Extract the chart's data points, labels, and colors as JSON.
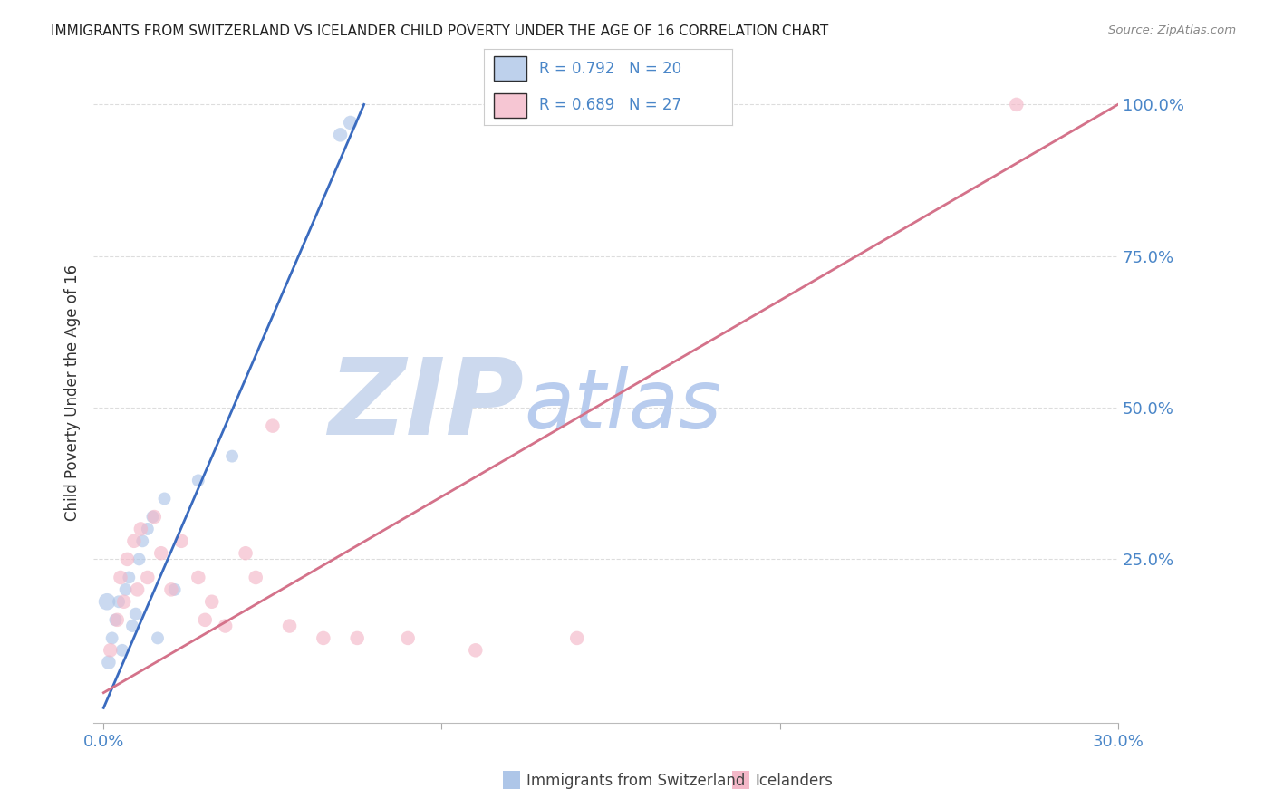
{
  "title": "IMMIGRANTS FROM SWITZERLAND VS ICELANDER CHILD POVERTY UNDER THE AGE OF 16 CORRELATION CHART",
  "source": "Source: ZipAtlas.com",
  "ylabel": "Child Poverty Under the Age of 16",
  "x_tick_labels": [
    "0.0%",
    "",
    "",
    "30.0%"
  ],
  "x_tick_values": [
    0.0,
    10.0,
    20.0,
    30.0
  ],
  "y_tick_labels": [
    "100.0%",
    "75.0%",
    "50.0%",
    "25.0%"
  ],
  "y_tick_values": [
    100.0,
    75.0,
    50.0,
    25.0
  ],
  "xlim": [
    -0.3,
    30.0
  ],
  "ylim": [
    -2.0,
    107.0
  ],
  "legend_r_blue": "R = 0.792",
  "legend_n_blue": "N = 20",
  "legend_r_pink": "R = 0.689",
  "legend_n_pink": "N = 27",
  "legend_label_blue": "Immigrants from Switzerland",
  "legend_label_pink": "Icelanders",
  "blue_color": "#aec6e8",
  "pink_color": "#f4b8c8",
  "blue_line_color": "#3a6bbf",
  "pink_line_color": "#d4728a",
  "title_color": "#222222",
  "tick_label_color": "#4a86c8",
  "watermark_zip_color": "#ccd9ee",
  "watermark_atlas_color": "#b8ccee",
  "background_color": "#ffffff",
  "grid_color": "#dddddd",
  "blue_scatter_x": [
    0.15,
    0.25,
    0.35,
    0.45,
    0.55,
    0.65,
    0.75,
    0.85,
    0.95,
    1.05,
    1.15,
    1.3,
    1.45,
    1.6,
    1.8,
    2.1,
    2.8,
    3.8,
    7.0,
    7.3
  ],
  "blue_scatter_y": [
    8.0,
    12.0,
    15.0,
    18.0,
    10.0,
    20.0,
    22.0,
    14.0,
    16.0,
    25.0,
    28.0,
    30.0,
    32.0,
    12.0,
    35.0,
    20.0,
    38.0,
    42.0,
    95.0,
    97.0
  ],
  "blue_scatter_size": [
    25,
    20,
    20,
    20,
    20,
    20,
    20,
    20,
    20,
    20,
    20,
    20,
    20,
    20,
    20,
    20,
    20,
    20,
    25,
    25
  ],
  "blue_large_x": [
    0.1
  ],
  "blue_large_y": [
    18.0
  ],
  "blue_large_size": [
    180
  ],
  "pink_scatter_x": [
    0.2,
    0.4,
    0.5,
    0.6,
    0.7,
    0.9,
    1.0,
    1.1,
    1.3,
    1.5,
    1.7,
    2.0,
    2.3,
    2.8,
    3.2,
    3.6,
    4.5,
    5.5,
    6.5,
    4.2,
    5.0,
    7.5,
    9.0,
    11.0,
    14.0,
    27.0,
    3.0
  ],
  "pink_scatter_y": [
    10.0,
    15.0,
    22.0,
    18.0,
    25.0,
    28.0,
    20.0,
    30.0,
    22.0,
    32.0,
    26.0,
    20.0,
    28.0,
    22.0,
    18.0,
    14.0,
    22.0,
    14.0,
    12.0,
    26.0,
    47.0,
    12.0,
    12.0,
    10.0,
    12.0,
    100.0,
    15.0
  ],
  "pink_scatter_size": [
    25,
    25,
    25,
    25,
    25,
    25,
    25,
    25,
    25,
    25,
    25,
    25,
    25,
    25,
    25,
    25,
    25,
    25,
    25,
    25,
    25,
    25,
    25,
    25,
    25,
    25,
    25
  ],
  "blue_line_x": [
    0.0,
    7.7
  ],
  "blue_line_y": [
    0.5,
    100.0
  ],
  "pink_line_x": [
    0.0,
    30.0
  ],
  "pink_line_y": [
    3.0,
    100.0
  ]
}
